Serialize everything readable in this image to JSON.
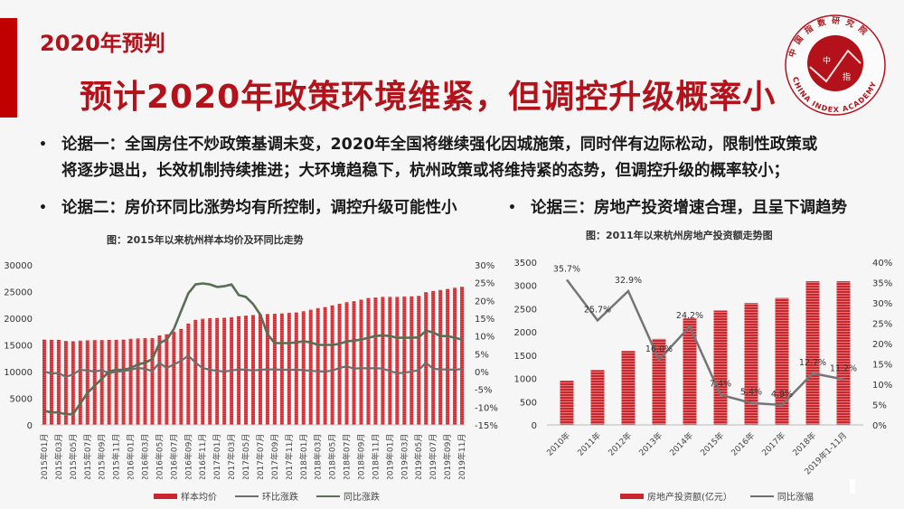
{
  "header": {
    "section_title": "2020年预判",
    "main_title": "预计2020年政策环境维紧，但调控升级概率小",
    "logo": {
      "icon": "china-index-academy-logo-icon",
      "ring_text_cn": "中国指数研究院",
      "ring_text_en": "CHINA INDEX ACADEMY",
      "inner_text_left": "中",
      "inner_text_right": "指",
      "color": "#b4121b"
    }
  },
  "bullets": [
    {
      "dot": "•",
      "text_line1": "论据一：全国房住不炒政策基调未变，2020年全国将继续强化因城施策，同时伴有边际松动，限制性政策或",
      "text_line2": "将逐步退出，长效机制持续推进；大环境趋稳下，杭州政策或将维持紧的态势，但调控升级的概率较小；"
    },
    {
      "dot": "•",
      "text": "论据二：房价环同比涨势均有所控制，调控升级可能性小"
    },
    {
      "dot": "•",
      "text": "论据三：房地产投资增速合理，且呈下调趋势"
    }
  ],
  "colors": {
    "accent": "#c00000",
    "title_red": "#b4121b",
    "bar_red": "#c8282d",
    "line_yoy": "#5a6e55",
    "line_mom": "#6e6e6e",
    "line_growth": "#757575",
    "background": "#f6f6f6"
  },
  "chart_data": [
    {
      "type": "bar",
      "title": "图：2015年以来杭州样本均价及环同比走势",
      "xlabel": "",
      "ylabel": "",
      "ylim": [
        0,
        30000
      ],
      "y2lim": [
        -15,
        30
      ],
      "y_ticks": [
        "0",
        "5000",
        "10000",
        "15000",
        "20000",
        "25000",
        "30000"
      ],
      "y2_ticks": [
        "-15%",
        "-10%",
        "-5%",
        "0%",
        "5%",
        "10%",
        "15%",
        "20%",
        "25%",
        "30%"
      ],
      "x_tick_labels": [
        "2015年01月",
        "2015年03月",
        "2015年05月",
        "2015年07月",
        "2015年09月",
        "2015年11月",
        "2016年01月",
        "2016年03月",
        "2016年05月",
        "2016年07月",
        "2016年09月",
        "2016年11月",
        "2017年01月",
        "2017年03月",
        "2017年05月",
        "2017年07月",
        "2017年09月",
        "2017年11月",
        "2018年01月",
        "2018年03月",
        "2018年05月",
        "2018年07月",
        "2018年09月",
        "2018年11月",
        "2019年01月",
        "2019年03月",
        "2019年05月",
        "2019年07月",
        "2019年09月",
        "2019年11月"
      ],
      "grid": false,
      "legend_position": "bottom",
      "legend": [
        "样本均价",
        "环比涨跌",
        "同比涨跌"
      ],
      "n_points": 59,
      "series": [
        {
          "name": "样本均价",
          "type": "bar",
          "axis": "left",
          "values": [
            16000,
            15950,
            15950,
            15750,
            15700,
            15800,
            15850,
            15900,
            15900,
            15950,
            15950,
            16000,
            16150,
            16200,
            16250,
            16250,
            16800,
            17000,
            17500,
            18000,
            19000,
            19700,
            19900,
            20000,
            20050,
            20100,
            20200,
            20400,
            20500,
            20600,
            20700,
            20800,
            20850,
            20900,
            21000,
            21100,
            21300,
            21600,
            21900,
            22100,
            22400,
            22700,
            23000,
            23200,
            23500,
            23800,
            23900,
            24000,
            24000,
            24000,
            24050,
            24100,
            24200,
            24900,
            25100,
            25300,
            25500,
            25700,
            25900
          ]
        },
        {
          "name": "环比涨跌",
          "type": "line",
          "axis": "right",
          "values": [
            0.0,
            -0.5,
            -0.4,
            -1.5,
            -0.8,
            0.5,
            0.3,
            0.0,
            0.4,
            -0.5,
            0.0,
            0.1,
            0.5,
            1.0,
            0.8,
            0.1,
            2.5,
            1.0,
            2.0,
            3.0,
            4.5,
            2.5,
            1.0,
            0.5,
            0.2,
            0.0,
            0.3,
            0.6,
            0.5,
            0.3,
            0.5,
            0.6,
            0.6,
            0.5,
            0.5,
            0.5,
            0.4,
            0.2,
            0.1,
            0.0,
            0.3,
            1.0,
            1.5,
            0.8,
            1.0,
            0.9,
            1.0,
            0.8,
            0.2,
            -0.5,
            -0.3,
            0.0,
            0.4,
            2.5,
            0.8,
            0.6,
            0.6,
            0.5,
            0.7
          ]
        },
        {
          "name": "同比涨跌",
          "type": "line",
          "axis": "right",
          "values": [
            -11.0,
            -11.5,
            -11.5,
            -12.0,
            -12.0,
            -9.0,
            -6.0,
            -4.0,
            -2.0,
            0.0,
            0.5,
            0.5,
            1.0,
            2.0,
            2.5,
            3.5,
            8.0,
            9.0,
            12.0,
            17.0,
            22.0,
            24.5,
            24.8,
            24.5,
            23.8,
            24.0,
            24.5,
            21.5,
            21.0,
            19.0,
            16.0,
            10.5,
            8.0,
            8.0,
            8.0,
            8.2,
            8.5,
            8.2,
            7.5,
            7.5,
            7.5,
            7.8,
            8.5,
            8.7,
            9.0,
            9.5,
            10.0,
            10.2,
            10.0,
            9.5,
            9.5,
            9.5,
            9.6,
            11.5,
            11.0,
            10.0,
            10.0,
            9.5,
            9.0
          ]
        }
      ]
    },
    {
      "type": "bar",
      "title": "图：2011年以来杭州房地产投资额走势图",
      "xlabel": "",
      "ylabel": "",
      "ylim": [
        0,
        3500
      ],
      "y2lim": [
        0,
        40
      ],
      "y_ticks": [
        "0",
        "500",
        "1000",
        "1500",
        "2000",
        "2500",
        "3000",
        "3500"
      ],
      "y2_ticks": [
        "0%",
        "5%",
        "10%",
        "15%",
        "20%",
        "25%",
        "30%",
        "35%",
        "40%"
      ],
      "categories": [
        "2010年",
        "2011年",
        "2012年",
        "2013年",
        "2014年",
        "2015年",
        "2016年",
        "2017年",
        "2018年",
        "2019年1-11月"
      ],
      "grid": false,
      "legend_position": "bottom",
      "legend": [
        "房地产投资额(亿元）",
        "同比涨幅"
      ],
      "series": [
        {
          "name": "房地产投资额(亿元）",
          "type": "bar",
          "axis": "left",
          "values": [
            950,
            1180,
            1590,
            1850,
            2290,
            2460,
            2620,
            2730,
            3090,
            3090
          ]
        },
        {
          "name": "同比涨幅",
          "type": "line",
          "axis": "right",
          "values": [
            35.7,
            25.7,
            32.9,
            16.0,
            24.2,
            7.4,
            5.4,
            4.9,
            12.7,
            11.2
          ],
          "data_labels": [
            "35.7%",
            "25.7%",
            "32.9%",
            "16.0%",
            "24.2%",
            "7.4%",
            "5.4%",
            "4.9%",
            "12.7%",
            "11.2%"
          ]
        }
      ]
    }
  ]
}
